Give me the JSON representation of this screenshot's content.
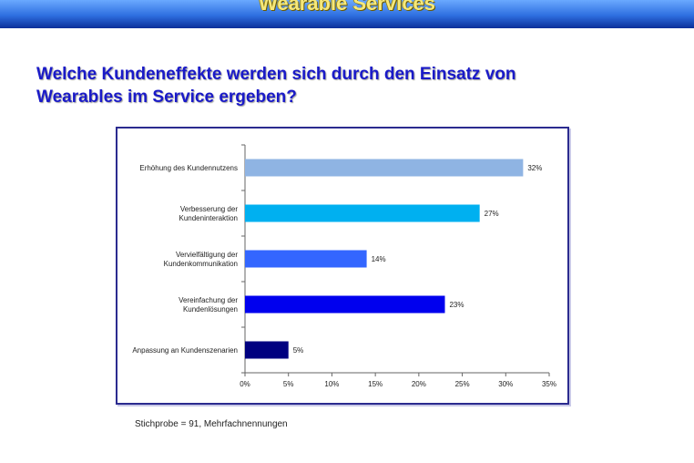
{
  "header": {
    "title": "Wearable Services"
  },
  "question": {
    "line1": "Welche Kundeneffekte werden sich durch den Einsatz von",
    "line2": "Wearables im Service ergeben?"
  },
  "footnote": "Stichprobe = 91, Mehrfachnennungen",
  "chart_data": {
    "type": "bar",
    "orientation": "horizontal",
    "categories": [
      [
        "Erhöhung des Kundennutzens"
      ],
      [
        "Verbesserung der",
        "Kundeninteraktion"
      ],
      [
        "Vervielfältigung der",
        "Kundenkommunikation"
      ],
      [
        "Vereinfachung der",
        "Kundenlösungen"
      ],
      [
        "Anpassung an Kundenszenarien"
      ]
    ],
    "values": [
      32,
      27,
      14,
      23,
      5
    ],
    "value_labels": [
      "32%",
      "27%",
      "14%",
      "23%",
      "5%"
    ],
    "bar_colors": [
      "#8fb4e3",
      "#00b0f0",
      "#3366ff",
      "#0000ee",
      "#000080"
    ],
    "xlim": [
      0,
      35
    ],
    "xticks": [
      0,
      5,
      10,
      15,
      20,
      25,
      30,
      35
    ],
    "xtick_labels": [
      "0%",
      "5%",
      "10%",
      "15%",
      "20%",
      "25%",
      "30%",
      "35%"
    ],
    "grid": false,
    "legend": "none"
  }
}
